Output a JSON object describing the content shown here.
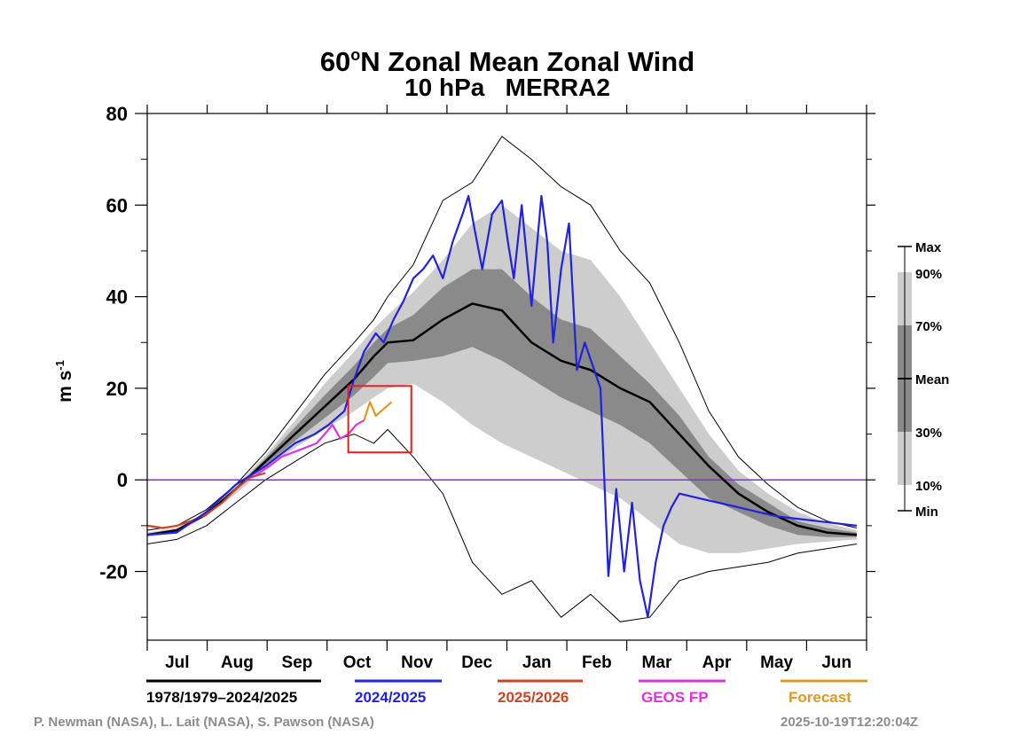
{
  "chart_data": {
    "type": "line",
    "title_main": "60",
    "title_sup": "o",
    "title_rest": "N Zonal Mean Zonal Wind",
    "subtitle": "10 hPa   MERRA2",
    "ylabel_base": "m s",
    "ylabel_exp": "-1",
    "ylim": [
      -35,
      80
    ],
    "yticks": [
      80,
      60,
      40,
      20,
      0,
      -20
    ],
    "ytick_labels": [
      "80",
      "60",
      "40",
      "20",
      "0",
      "-20"
    ],
    "months": [
      "Jul",
      "Aug",
      "Sep",
      "Oct",
      "Nov",
      "Dec",
      "Jan",
      "Feb",
      "Mar",
      "Apr",
      "May",
      "Jun"
    ],
    "zero_line_color": "#8a2be2",
    "x_days": [
      0,
      15,
      30,
      45,
      60,
      75,
      90,
      105,
      115,
      122,
      135,
      150,
      165,
      180,
      195,
      210,
      225,
      240,
      255,
      270,
      285,
      300,
      315,
      330,
      345,
      360
    ],
    "climatology": {
      "mean": [
        -12,
        -11,
        -7.5,
        -2,
        4,
        10,
        16,
        22,
        27,
        30,
        30.5,
        35,
        38.5,
        37,
        30,
        26,
        24,
        20,
        17,
        10,
        3,
        -3,
        -7,
        -10,
        -11.5,
        -12
      ],
      "p10": [
        -12.5,
        -11.5,
        -8,
        -3,
        2.5,
        7,
        11,
        15,
        18,
        20,
        21,
        17,
        12,
        8,
        5,
        2,
        -1,
        -4,
        -9,
        -14,
        -16,
        -16,
        -15,
        -14,
        -13.5,
        -13
      ],
      "p30": [
        -12.2,
        -11.2,
        -7.7,
        -2.3,
        3.3,
        8.5,
        13.5,
        18.5,
        22.5,
        25.5,
        26,
        27,
        29,
        26,
        22,
        18,
        15,
        12,
        8,
        2,
        -4,
        -7,
        -10,
        -12,
        -12.5,
        -12.5
      ],
      "p70": [
        -11.8,
        -10.8,
        -7.2,
        -1.7,
        4.7,
        11.5,
        18.5,
        25,
        30,
        33,
        36,
        42,
        46,
        46,
        40,
        35,
        33,
        27,
        21,
        14,
        5,
        -1,
        -5,
        -9,
        -10.5,
        -11.5
      ],
      "p90": [
        -11.5,
        -10.5,
        -7,
        -1.3,
        5.3,
        13,
        21,
        28,
        33,
        36,
        41,
        48,
        56,
        60,
        55,
        50,
        48,
        40,
        30,
        20,
        10,
        2,
        -3,
        -7,
        -9.5,
        -11
      ],
      "max": [
        -11,
        -10,
        -6.5,
        -1,
        6,
        14.5,
        23,
        30,
        35,
        40,
        47,
        61,
        65,
        75,
        70,
        64,
        60,
        50,
        43,
        30,
        15,
        5,
        -1,
        -6,
        -9,
        -10.5
      ],
      "min": [
        -14,
        -13,
        -10,
        -5,
        0,
        4,
        8,
        10,
        8,
        11,
        5,
        -3,
        -18,
        -25,
        -22,
        -30,
        -25,
        -31,
        -30,
        -22,
        -20,
        -19,
        -18,
        -16,
        -15,
        -14
      ]
    },
    "series": [
      {
        "name": "2024/2025",
        "color": "#2222dd",
        "x": [
          0,
          15,
          30,
          45,
          60,
          75,
          85,
          92,
          100,
          105,
          110,
          116,
          120,
          125,
          130,
          135,
          140,
          145,
          150,
          155,
          160,
          163,
          166,
          170,
          175,
          180,
          183,
          186,
          190,
          195,
          200,
          203,
          206,
          210,
          214,
          218,
          222,
          226,
          230,
          234,
          238,
          242,
          246,
          250,
          254,
          258,
          262,
          266,
          270,
          280,
          290,
          300,
          310,
          320,
          330,
          340,
          350,
          360
        ],
        "y": [
          -12,
          -11.5,
          -7,
          -1,
          3,
          8,
          10,
          12,
          15,
          22,
          28,
          32,
          30,
          35,
          39,
          44,
          46,
          49,
          44,
          52,
          58,
          62,
          55,
          46,
          58,
          61,
          52,
          44,
          60,
          38,
          62,
          52,
          30,
          46,
          56,
          24,
          30,
          25,
          20,
          -21,
          -2,
          -20,
          -5,
          -22,
          -30,
          -18,
          -10,
          -6,
          -3,
          -4,
          -5,
          -6,
          -7,
          -8,
          -8.5,
          -9,
          -9.5,
          -10
        ]
      },
      {
        "name": "2025/2026",
        "color": "#cc4422",
        "x": [
          0,
          8,
          15,
          22,
          30,
          38,
          45,
          52,
          60
        ],
        "y": [
          -10,
          -10.5,
          -10,
          -9,
          -7.5,
          -5,
          -2,
          0.5,
          1.5
        ]
      },
      {
        "name": "GEOS FP",
        "color": "#dd33dd",
        "x": [
          55,
          62,
          68,
          74,
          80,
          86,
          90,
          94,
          98,
          102,
          106,
          110
        ],
        "y": [
          1,
          3,
          5,
          6,
          7,
          8,
          10,
          12,
          9,
          10,
          12,
          13
        ]
      },
      {
        "name": "Forecast",
        "color": "#dd9922",
        "x": [
          110,
          113,
          116,
          120,
          124
        ],
        "y": [
          13,
          17,
          14,
          15.5,
          17
        ]
      }
    ],
    "percentile_legend": {
      "labels": [
        "Max",
        "90%",
        "70%",
        "Mean",
        "30%",
        "10%",
        "Min"
      ],
      "colors": {
        "light": "#cdcdcd",
        "dark": "#8a8a8a"
      }
    },
    "series_legend": [
      {
        "label": "1978/1979–2024/2025",
        "color": "#000000"
      },
      {
        "label": "2024/2025",
        "color": "#2222dd"
      },
      {
        "label": "2025/2026",
        "color": "#cc4422"
      },
      {
        "label": "GEOS FP",
        "color": "#dd33dd"
      },
      {
        "label": "Forecast",
        "color": "#dd9922"
      }
    ],
    "highlight_box": {
      "x_range": [
        102,
        134
      ],
      "y_range": [
        6,
        20.5
      ],
      "color": "#dd2222"
    },
    "credits_left": "P. Newman (NASA), L. Lait (NASA), S. Pawson (NASA)",
    "credits_right": "2025-10-19T12:20:04Z"
  }
}
